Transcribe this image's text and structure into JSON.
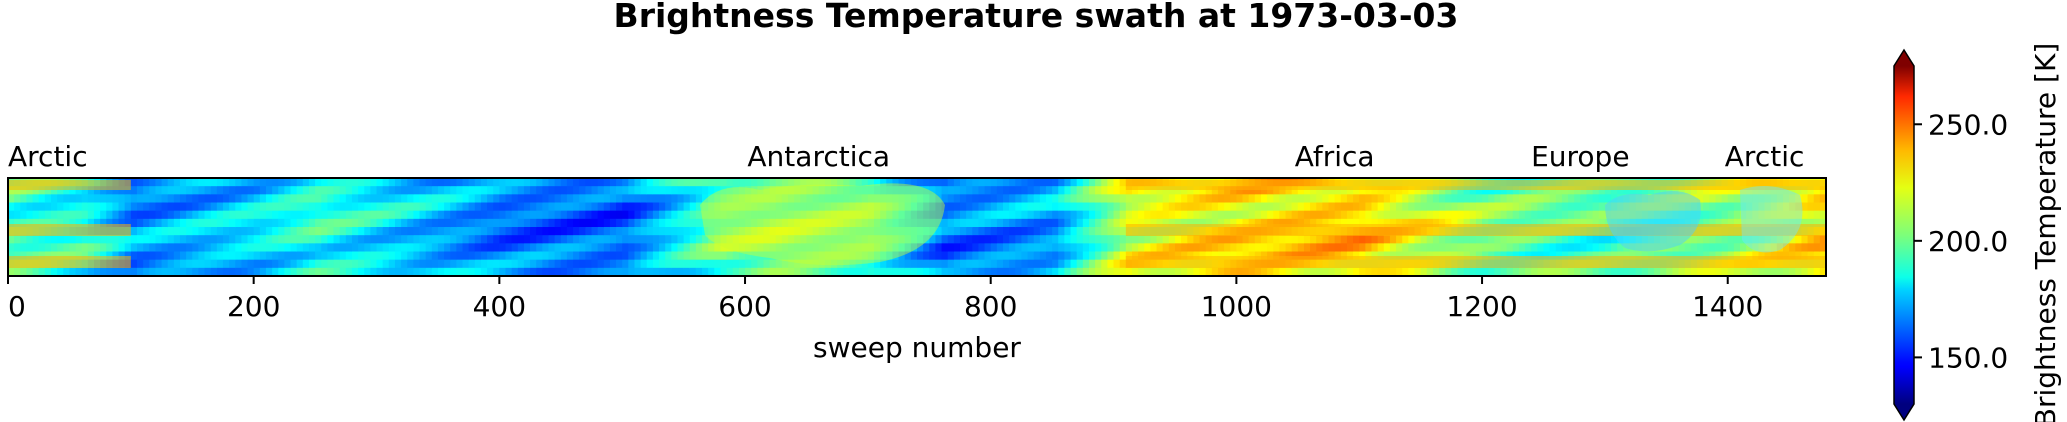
{
  "chart_data": {
    "type": "heatmap",
    "title": "Brightness Temperature swath at 1973-03-03",
    "xlabel": "sweep number",
    "xlim": [
      0,
      1480
    ],
    "x_ticks": [
      0,
      200,
      400,
      600,
      800,
      1000,
      1200,
      1400
    ],
    "x_tick_labels": [
      "0",
      "200",
      "400",
      "600",
      "800",
      "1000",
      "1200",
      "1400"
    ],
    "region_labels": [
      {
        "text": "Arctic",
        "x": 0
      },
      {
        "text": "Antarctica",
        "x": 660
      },
      {
        "text": "Africa",
        "x": 1080
      },
      {
        "text": "Europe",
        "x": 1280
      },
      {
        "text": "Arctic",
        "x": 1430
      }
    ],
    "colorbar": {
      "label": "Brightness Temperature [K]",
      "colormap": "jet",
      "range": [
        130,
        275
      ],
      "ticks": [
        150,
        200,
        250
      ],
      "tick_labels": [
        "150.0",
        "200.0",
        "250.0"
      ],
      "extend": "both"
    },
    "swath_profile": [
      {
        "x": 0,
        "mean": 195
      },
      {
        "x": 60,
        "mean": 188
      },
      {
        "x": 100,
        "mean": 168
      },
      {
        "x": 200,
        "mean": 180
      },
      {
        "x": 250,
        "mean": 190
      },
      {
        "x": 300,
        "mean": 182
      },
      {
        "x": 400,
        "mean": 165
      },
      {
        "x": 500,
        "mean": 162
      },
      {
        "x": 580,
        "mean": 200
      },
      {
        "x": 620,
        "mean": 205
      },
      {
        "x": 700,
        "mean": 200
      },
      {
        "x": 760,
        "mean": 165
      },
      {
        "x": 850,
        "mean": 172
      },
      {
        "x": 910,
        "mean": 215
      },
      {
        "x": 1000,
        "mean": 225
      },
      {
        "x": 1100,
        "mean": 228
      },
      {
        "x": 1200,
        "mean": 200
      },
      {
        "x": 1300,
        "mean": 195
      },
      {
        "x": 1400,
        "mean": 205
      },
      {
        "x": 1480,
        "mean": 225
      }
    ]
  }
}
